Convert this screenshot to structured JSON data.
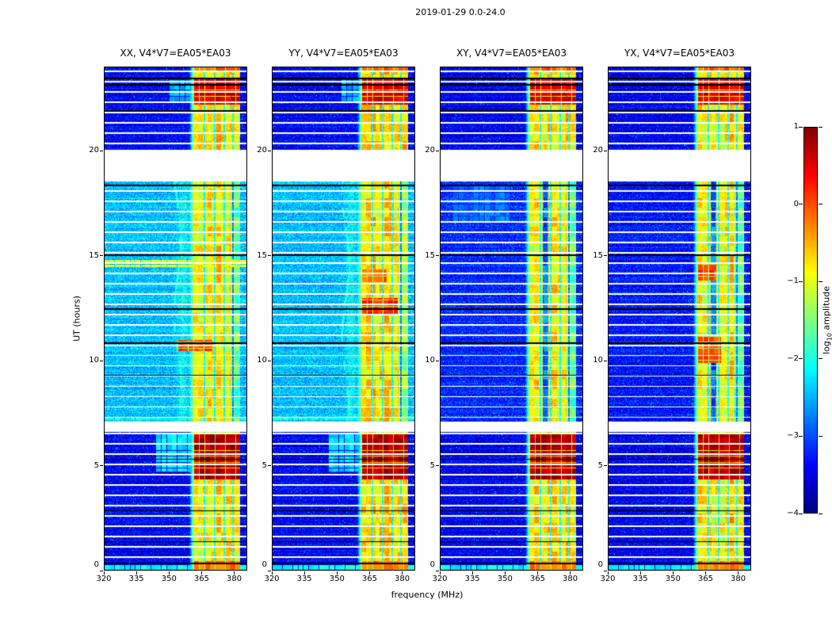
{
  "chart_data": {
    "type": "heatmap",
    "title": "2019-01-29 0.0-24.0",
    "xlabel": "frequency (MHz)",
    "ylabel": "UT (hours)",
    "x_range": [
      320,
      386
    ],
    "y_range": [
      0,
      24
    ],
    "x_ticks": [
      320,
      335,
      350,
      365,
      380
    ],
    "y_ticks": [
      0,
      5,
      10,
      15,
      20
    ],
    "colorbar": {
      "label_pre": "log",
      "label_sub": "10",
      "label_post": " amplitude",
      "ticks": [
        1,
        0,
        -1,
        -2,
        -3,
        -4
      ],
      "vmin": -4,
      "vmax": 1
    },
    "panels": [
      {
        "title": "XX, V4*V7=EA05*EA03",
        "pol": "XX",
        "bg_mid": -2.45,
        "bg_out": -3.4,
        "streak": 1,
        "mid_band_gaps": [],
        "extras": [
          [
            14.45,
            14.78,
            320,
            386,
            -1.0
          ],
          [
            10.45,
            11.0,
            354,
            370,
            0.05
          ],
          [
            4.7,
            6.55,
            344,
            361.5,
            -2.25
          ],
          [
            22.25,
            23.35,
            350,
            361.5,
            -2.5
          ],
          [
            7.08,
            7.28,
            320,
            386,
            -2.0
          ]
        ]
      },
      {
        "title": "YY, V4*V7=EA05*EA03",
        "pol": "YY",
        "bg_mid": -2.45,
        "bg_out": -3.4,
        "streak": 1,
        "mid_band_gaps": [],
        "extras": [
          [
            12.15,
            13.0,
            361.5,
            378,
            0.25
          ],
          [
            13.75,
            14.35,
            361.5,
            373,
            -0.1
          ],
          [
            4.7,
            6.55,
            346,
            361.5,
            -2.3
          ],
          [
            22.25,
            23.35,
            352,
            361.5,
            -2.5
          ],
          [
            7.08,
            7.28,
            320,
            386,
            -2.0
          ]
        ]
      },
      {
        "title": "XY, V4*V7=EA05*EA03",
        "pol": "XY",
        "bg_mid": -3.2,
        "bg_out": -3.45,
        "streak": 0,
        "mid_band_gaps": [
          [
            367.5,
            370.0
          ]
        ],
        "extras": [
          [
            16.6,
            18.3,
            326,
            352,
            -2.85
          ]
        ]
      },
      {
        "title": "YX, V4*V7=EA05*EA03",
        "pol": "YX",
        "bg_mid": -3.3,
        "bg_out": -3.45,
        "streak": 0,
        "mid_band_gaps": [
          [
            367.3,
            369.8
          ]
        ],
        "extras": [
          [
            13.8,
            14.6,
            361.5,
            370,
            0.1
          ],
          [
            9.9,
            11.2,
            361.5,
            372,
            0.0
          ]
        ]
      }
    ],
    "band": {
      "f0": 361.3,
      "f1": 382.7,
      "level_mid": -0.85,
      "level_out": -0.8,
      "gaps": [
        366.3,
        371.1,
        375.4,
        379.4
      ],
      "gap_width": 0.55
    },
    "hot_blocks": [
      [
        4.35,
        6.55,
        361.5,
        382.7,
        0.75
      ],
      [
        22.2,
        23.38,
        361.5,
        382.7,
        0.55
      ],
      [
        23.7,
        24.0,
        361.5,
        382.7,
        -0.1
      ],
      [
        0.05,
        0.45,
        361.5,
        382.7,
        -0.2
      ],
      [
        0.04,
        0.28,
        320,
        386,
        -2.1
      ]
    ],
    "data_gaps": [
      [
        6.6,
        7.08
      ],
      [
        18.62,
        20.02
      ]
    ],
    "white_lines": [
      0.64,
      1.13,
      1.62,
      2.11,
      2.6,
      3.09,
      3.58,
      4.07,
      4.56,
      5.05,
      5.54,
      6.03,
      6.52,
      7.3,
      7.79,
      8.28,
      8.77,
      9.26,
      9.75,
      10.24,
      10.73,
      11.22,
      11.71,
      12.2,
      12.69,
      13.18,
      13.67,
      14.16,
      14.65,
      15.14,
      15.63,
      16.12,
      16.61,
      17.1,
      17.59,
      18.08,
      18.57,
      20.35,
      20.84,
      21.33,
      21.82,
      22.31,
      22.8,
      23.29,
      23.78
    ],
    "black_lines": [
      23.42,
      23.12,
      21.9,
      18.35,
      15.03,
      12.45,
      10.82,
      9.28,
      5.3,
      2.85,
      1.38,
      0.35
    ]
  }
}
